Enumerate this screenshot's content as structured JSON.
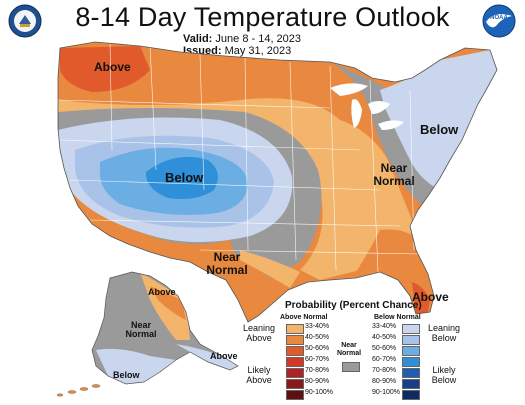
{
  "header": {
    "title": "8-14 Day Temperature Outlook",
    "valid_label": "Valid:",
    "valid_value": "June 8 - 14, 2023",
    "issued_label": "Issued:",
    "issued_value": "May 31, 2023"
  },
  "logos": {
    "left": "noaa-doc-seal-icon",
    "right": "noaa-logo-icon",
    "right_text": "NOAA"
  },
  "map": {
    "labels": {
      "above_northwest": "Above",
      "below_west": "Below",
      "below_northeast": "Below",
      "near_normal_east": "Near Normal",
      "near_normal_southwest": "Near Normal",
      "above_florida": "Above",
      "above_alaska": "Above",
      "near_normal_alaska": "Near Normal",
      "above_aleutians": "Above",
      "below_alaska_south": "Below"
    }
  },
  "legend": {
    "title": "Probability (Percent Chance)",
    "above_header": "Above Normal",
    "below_header": "Below Normal",
    "near_normal": "Near Normal",
    "leaning_above": "Leaning Above",
    "likely_above": "Likely Above",
    "leaning_below": "Leaning Below",
    "likely_below": "Likely Below",
    "above_bins": [
      {
        "label": "33-40%",
        "color": "#f2b56b"
      },
      {
        "label": "40-50%",
        "color": "#e8893f"
      },
      {
        "label": "50-60%",
        "color": "#e05a2b"
      },
      {
        "label": "60-70%",
        "color": "#d4362a"
      },
      {
        "label": "70-80%",
        "color": "#b02222"
      },
      {
        "label": "80-90%",
        "color": "#8a1a1a"
      },
      {
        "label": "90-100%",
        "color": "#5e1010"
      }
    ],
    "below_bins": [
      {
        "label": "33-40%",
        "color": "#c9d6ee"
      },
      {
        "label": "40-50%",
        "color": "#a9c2e8"
      },
      {
        "label": "50-60%",
        "color": "#6aaee3"
      },
      {
        "label": "60-70%",
        "color": "#2f8fd9"
      },
      {
        "label": "70-80%",
        "color": "#1c5fb2"
      },
      {
        "label": "80-90%",
        "color": "#163f8a"
      },
      {
        "label": "90-100%",
        "color": "#0e2a66"
      }
    ],
    "near_normal_color": "#9a9a9a"
  }
}
